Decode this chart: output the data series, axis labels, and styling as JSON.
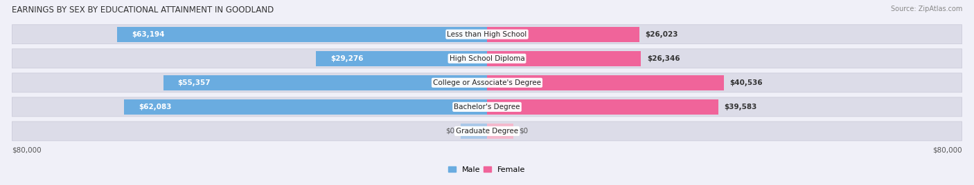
{
  "title": "EARNINGS BY SEX BY EDUCATIONAL ATTAINMENT IN GOODLAND",
  "source": "Source: ZipAtlas.com",
  "categories": [
    "Less than High School",
    "High School Diploma",
    "College or Associate's Degree",
    "Bachelor's Degree",
    "Graduate Degree"
  ],
  "male_values": [
    63194,
    29276,
    55357,
    62083,
    0
  ],
  "female_values": [
    26023,
    26346,
    40536,
    39583,
    0
  ],
  "male_labels": [
    "$63,194",
    "$29,276",
    "$55,357",
    "$62,083",
    "$0"
  ],
  "female_labels": [
    "$26,023",
    "$26,346",
    "$40,536",
    "$39,583",
    "$0"
  ],
  "male_color": "#6aace0",
  "female_color": "#f0649a",
  "male_zero_color": "#aac8e8",
  "female_zero_color": "#f4b8cc",
  "row_bg_color": "#dcdce8",
  "fig_bg_color": "#f0f0f8",
  "max_value": 80000,
  "zero_bar_width": 4500,
  "title_fontsize": 8.5,
  "source_fontsize": 7,
  "label_fontsize": 7.5,
  "cat_fontsize": 7.5,
  "axis_fontsize": 7.5,
  "legend_fontsize": 8
}
